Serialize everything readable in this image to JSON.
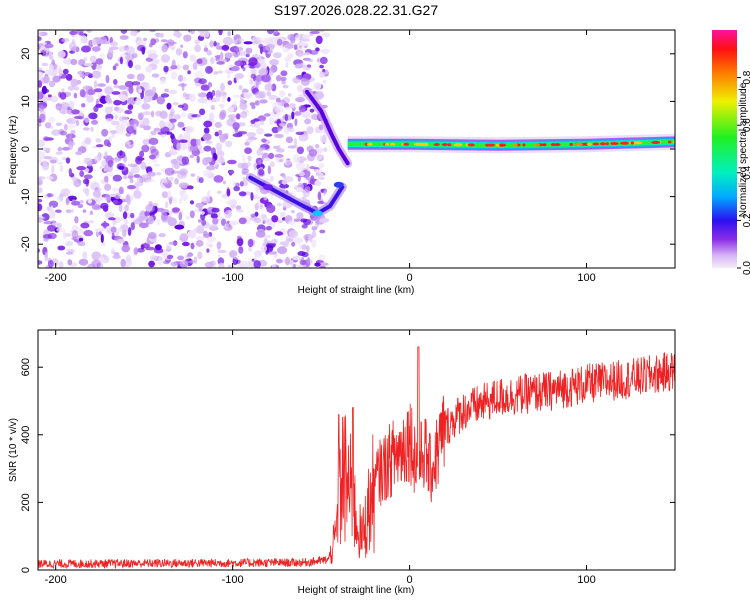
{
  "title": "S197.2026.028.22.31.G27",
  "chart_data": [
    {
      "type": "heatmap",
      "xlabel": "Height of straight line (km)",
      "ylabel": "Frequency (Hz)",
      "xlim": [
        -210,
        150
      ],
      "ylim": [
        -25,
        25
      ],
      "xticks": [
        -200,
        -100,
        0,
        100
      ],
      "yticks": [
        -20,
        -10,
        0,
        10,
        20
      ],
      "colorbar": {
        "label": "Normalized spectral amplitude",
        "range": [
          0,
          1
        ],
        "ticks": [
          0.0,
          0.2,
          0.4,
          0.6,
          0.8
        ]
      },
      "features": {
        "noise_region_x": [
          -210,
          -55
        ],
        "upper_branch": [
          [
            -58,
            12
          ],
          [
            -50,
            8
          ],
          [
            -44,
            3
          ],
          [
            -40,
            0
          ],
          [
            -35,
            -3
          ]
        ],
        "lower_branch": [
          [
            -90,
            -6
          ],
          [
            -80,
            -8
          ],
          [
            -70,
            -10
          ],
          [
            -60,
            -12
          ],
          [
            -52,
            -13.5
          ],
          [
            -45,
            -12
          ],
          [
            -38,
            -8
          ]
        ],
        "carrier_line": [
          [
            -35,
            1
          ],
          [
            -20,
            1
          ],
          [
            0,
            1
          ],
          [
            50,
            0.8
          ],
          [
            100,
            1
          ],
          [
            150,
            1.5
          ]
        ]
      }
    },
    {
      "type": "line",
      "xlabel": "Height of straight line (km)",
      "ylabel": "SNR (10 * v/v)",
      "xlim": [
        -210,
        150
      ],
      "ylim": [
        0,
        710
      ],
      "xticks": [
        -200,
        -100,
        0,
        100
      ],
      "yticks": [
        0,
        200,
        400,
        600
      ],
      "series": [
        {
          "name": "SNR",
          "color": "#ee2222",
          "envelope": [
            [
              -210,
              18
            ],
            [
              -60,
              22
            ],
            [
              -46,
              30
            ],
            [
              -42,
              90
            ],
            [
              -38,
              280
            ],
            [
              -34,
              240
            ],
            [
              -30,
              150
            ],
            [
              -27,
              90
            ],
            [
              -24,
              160
            ],
            [
              -18,
              280
            ],
            [
              -10,
              330
            ],
            [
              -4,
              360
            ],
            [
              0,
              400
            ],
            [
              5,
              300
            ],
            [
              8,
              360
            ],
            [
              12,
              290
            ],
            [
              20,
              420
            ],
            [
              30,
              470
            ],
            [
              50,
              510
            ],
            [
              80,
              530
            ],
            [
              100,
              550
            ],
            [
              130,
              570
            ],
            [
              150,
              590
            ]
          ]
        }
      ]
    }
  ]
}
